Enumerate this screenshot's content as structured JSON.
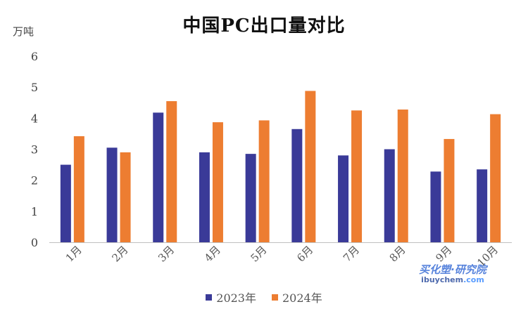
{
  "chart_data": {
    "type": "bar",
    "title": "中国PC出口量对比",
    "ylabel": "万吨",
    "xlabel": "",
    "ylim": [
      0,
      6
    ],
    "yticks": [
      "0",
      "1",
      "2",
      "3",
      "4",
      "5",
      "6"
    ],
    "categories": [
      "1月",
      "2月",
      "3月",
      "4月",
      "5月",
      "6月",
      "7月",
      "8月",
      "9月",
      "10月"
    ],
    "series": [
      {
        "name": "2023年",
        "color": "#3a3a98",
        "values": [
          2.5,
          3.05,
          4.18,
          2.9,
          2.85,
          3.65,
          2.8,
          3.0,
          2.28,
          2.35
        ]
      },
      {
        "name": "2024年",
        "color": "#ed7d31",
        "values": [
          3.42,
          2.9,
          4.55,
          3.87,
          3.93,
          4.88,
          4.25,
          4.28,
          3.33,
          4.13
        ]
      }
    ],
    "grid": false,
    "legend_position": "bottom"
  },
  "watermark": {
    "text_cn": "买化塑·研究院",
    "url_main": "ibuychem",
    "url_suffix": ".com"
  }
}
